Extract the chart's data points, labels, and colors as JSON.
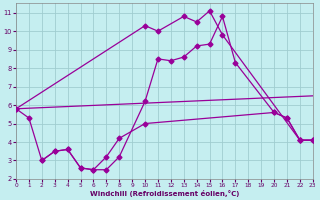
{
  "xlabel": "Windchill (Refroidissement éolien,°C)",
  "xlim": [
    0,
    23
  ],
  "ylim": [
    2,
    11.5
  ],
  "yticks": [
    2,
    3,
    4,
    5,
    6,
    7,
    8,
    9,
    10,
    11
  ],
  "xticks": [
    0,
    1,
    2,
    3,
    4,
    5,
    6,
    7,
    8,
    9,
    10,
    11,
    12,
    13,
    14,
    15,
    16,
    17,
    18,
    19,
    20,
    21,
    22,
    23
  ],
  "bg_color": "#c5eef0",
  "grid_color": "#a0cdd0",
  "line_color": "#990099",
  "marker": "D",
  "marker_size": 2.5,
  "line_width": 0.9,
  "line1_x": [
    0,
    1,
    2,
    3,
    4,
    5,
    6,
    7,
    8,
    10,
    11,
    12,
    13,
    14,
    15,
    16,
    17,
    20,
    21,
    22,
    23
  ],
  "line1_y": [
    5.8,
    5.3,
    3.0,
    3.5,
    3.6,
    2.6,
    2.5,
    2.5,
    3.2,
    6.2,
    8.5,
    8.4,
    8.6,
    9.2,
    9.3,
    10.8,
    8.3,
    5.6,
    5.3,
    4.1,
    4.1
  ],
  "line2_x": [
    0,
    10,
    11,
    13,
    14,
    15,
    16,
    22,
    23
  ],
  "line2_y": [
    5.8,
    10.3,
    10.0,
    10.8,
    10.5,
    11.1,
    9.8,
    4.1,
    4.1
  ],
  "line3_x": [
    0,
    23
  ],
  "line3_y": [
    5.8,
    6.5
  ],
  "line4_x": [
    2,
    3,
    4,
    5,
    6,
    7,
    8,
    10,
    20,
    21,
    22,
    23
  ],
  "line4_y": [
    3.0,
    3.5,
    3.6,
    2.6,
    2.5,
    3.2,
    4.2,
    5.0,
    5.6,
    5.3,
    4.1,
    4.1
  ]
}
